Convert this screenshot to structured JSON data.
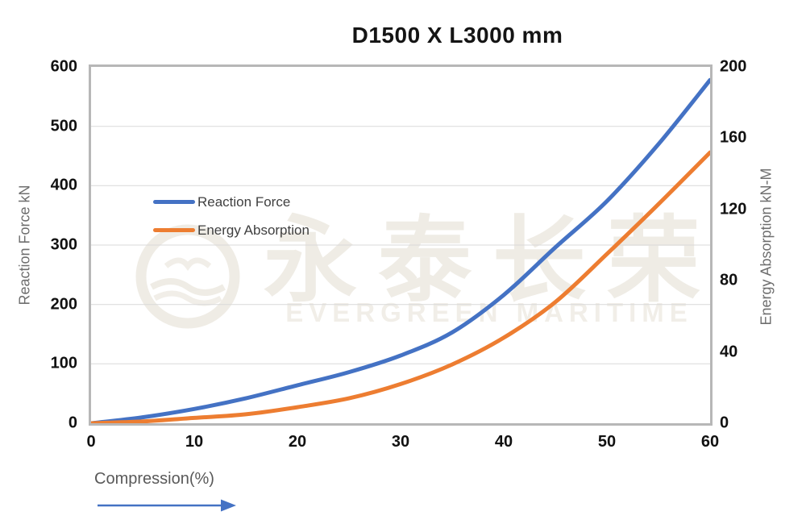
{
  "title": "D1500 X L3000 mm",
  "watermark": {
    "logo": "evergreen-maritime-emblem",
    "cn": "永泰长荣",
    "en": "EVERGREEN MARITIME"
  },
  "axes": {
    "left": {
      "title": "Reaction Force kN",
      "ticks": [
        0,
        100,
        200,
        300,
        400,
        500,
        600
      ]
    },
    "right": {
      "title": "Energy Absorption kN-M",
      "ticks": [
        0,
        40,
        80,
        120,
        160,
        200
      ]
    },
    "x": {
      "title": "Compression(%)",
      "ticks": [
        0,
        10,
        20,
        30,
        40,
        50,
        60
      ]
    }
  },
  "chart_data": {
    "type": "line",
    "title": "D1500 X L3000 mm",
    "x": [
      0,
      5,
      10,
      15,
      20,
      25,
      30,
      35,
      40,
      45,
      50,
      55,
      60
    ],
    "series": [
      {
        "name": "Reaction Force",
        "axis": "left",
        "color": "#4472C4",
        "values": [
          0,
          10,
          24,
          42,
          64,
          86,
          114,
          153,
          216,
          296,
          374,
          470,
          578
        ]
      },
      {
        "name": "Energy Absorption",
        "axis": "right",
        "color": "#ED7D31",
        "values": [
          0,
          1,
          3,
          5,
          9,
          14,
          22,
          33,
          48,
          68,
          95,
          123,
          152
        ]
      }
    ],
    "xlabel": "Compression(%)",
    "ylabel_left": "Reaction Force kN",
    "ylabel_right": "Energy Absorption kN-M",
    "xlim": [
      0,
      60
    ],
    "ylim_left": [
      0,
      600
    ],
    "ylim_right": [
      0,
      200
    ],
    "grid": "horizontal",
    "legend_position": "inside-upper-left"
  },
  "colors": {
    "series_blue": "#4472C4",
    "series_orange": "#ED7D31",
    "grid": "#D9D9D9",
    "plot_border": "#B7B7B7",
    "tick_label": "#111111",
    "axis_title": "#6E6E6E",
    "legend_text": "#3F3F3F",
    "arrow": "#4472C4"
  }
}
